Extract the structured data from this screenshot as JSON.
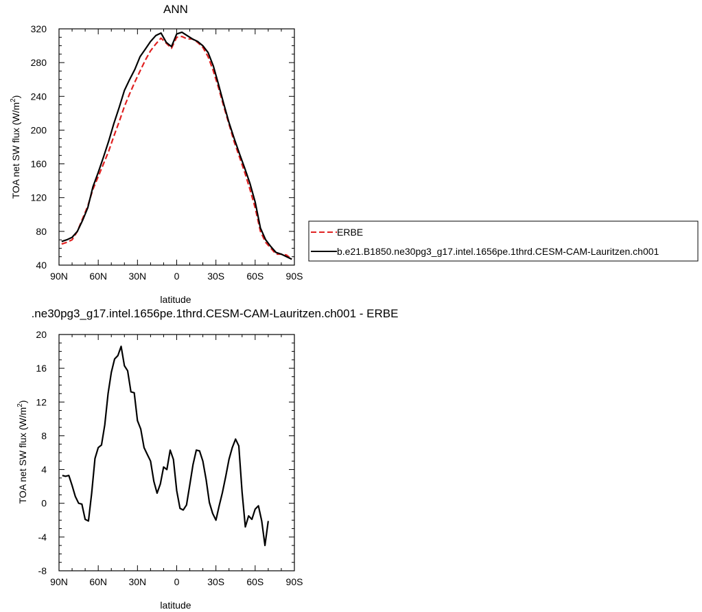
{
  "chart_data": [
    {
      "type": "line",
      "title": "ANN",
      "xlabel": "latitude",
      "ylabel": "TOA net SW flux (W/m",
      "ylabel_sup": "2",
      "ylabel_close": ")",
      "xlim": [
        90,
        -90
      ],
      "ylim": [
        40,
        320
      ],
      "x_ticks": [
        90,
        60,
        30,
        0,
        -30,
        -60,
        -90
      ],
      "x_tick_labels": [
        "90N",
        "60N",
        "30N",
        "0",
        "30S",
        "60S",
        "90S"
      ],
      "y_ticks": [
        40,
        80,
        120,
        160,
        200,
        240,
        280,
        320
      ],
      "y_tick_labels": [
        "40",
        "80",
        "120",
        "160",
        "200",
        "240",
        "280",
        "320"
      ],
      "legend_position": "right",
      "series": [
        {
          "name": "ERBE",
          "color": "#e02020",
          "dash": "8,4",
          "x": [
            88,
            84,
            80,
            76,
            72,
            68,
            64,
            60,
            56,
            52,
            48,
            44,
            40,
            36,
            32,
            28,
            24,
            20,
            16,
            12,
            8,
            4,
            0,
            -4,
            -8,
            -12,
            -16,
            -20,
            -24,
            -28,
            -32,
            -36,
            -40,
            -44,
            -48,
            -52,
            -56,
            -60,
            -64,
            -68,
            -72,
            -76,
            -80,
            -84,
            -88
          ],
          "y": [
            65,
            67,
            70,
            80,
            95,
            110,
            130,
            145,
            160,
            175,
            193,
            210,
            228,
            243,
            257,
            270,
            283,
            294,
            302,
            309,
            303,
            297,
            310,
            311,
            308,
            308,
            304,
            298,
            287,
            270,
            250,
            228,
            207,
            186,
            168,
            150,
            130,
            108,
            80,
            67,
            60,
            53,
            53,
            52,
            47
          ]
        },
        {
          "name": "b.e21.B1850.ne30pg3_g17.intel.1656pe.1thrd.CESM-CAM-Lauritzen.ch001",
          "color": "#000000",
          "dash": "",
          "x": [
            88,
            84,
            80,
            76,
            72,
            68,
            64,
            60,
            56,
            52,
            48,
            44,
            40,
            36,
            32,
            28,
            24,
            20,
            16,
            12,
            8,
            4,
            0,
            -4,
            -8,
            -12,
            -16,
            -20,
            -24,
            -28,
            -32,
            -36,
            -40,
            -44,
            -48,
            -52,
            -56,
            -60,
            -64,
            -68,
            -72,
            -76,
            -80,
            -84,
            -88
          ],
          "y": [
            68,
            70,
            73,
            80,
            93,
            108,
            133,
            150,
            168,
            187,
            208,
            227,
            247,
            260,
            272,
            287,
            296,
            305,
            312,
            315,
            304,
            299,
            314,
            316,
            312,
            308,
            305,
            300,
            292,
            276,
            254,
            231,
            209,
            190,
            172,
            155,
            137,
            115,
            84,
            70,
            62,
            55,
            53,
            50,
            47
          ]
        }
      ]
    },
    {
      "type": "line",
      "title": ".ne30pg3_g17.intel.1656pe.1thrd.CESM-CAM-Lauritzen.ch001 - ERBE",
      "xlabel": "latitude",
      "ylabel": "TOA net SW flux (W/m",
      "ylabel_sup": "2",
      "ylabel_close": ")",
      "xlim": [
        90,
        -90
      ],
      "ylim": [
        -8,
        20
      ],
      "x_ticks": [
        90,
        60,
        30,
        0,
        -30,
        -60,
        -90
      ],
      "x_tick_labels": [
        "90N",
        "60N",
        "30N",
        "0",
        "30S",
        "60S",
        "90S"
      ],
      "y_ticks": [
        -8,
        -4,
        0,
        4,
        8,
        12,
        16,
        20
      ],
      "y_tick_labels": [
        "-8",
        "-4",
        "0",
        "4",
        "8",
        "12",
        "16",
        "20"
      ],
      "series": [
        {
          "color": "#000000",
          "dash": "",
          "x": [
            87.5,
            85,
            82.5,
            80,
            77.5,
            75,
            72.5,
            70,
            67.5,
            65,
            62.5,
            60,
            57.5,
            55,
            52.5,
            50,
            47.5,
            45,
            42.5,
            40,
            37.5,
            35,
            32.5,
            30,
            27.5,
            25,
            22.5,
            20,
            17.5,
            15,
            12.5,
            10,
            7.5,
            5,
            2.5,
            0,
            -2.5,
            -5,
            -7.5,
            -10,
            -12.5,
            -15,
            -17.5,
            -20,
            -22.5,
            -25,
            -27.5,
            -30,
            -32.5,
            -35,
            -37.5,
            -40,
            -42.5,
            -45,
            -47.5,
            -50,
            -52.5,
            -55,
            -57.5,
            -60,
            -62.5,
            -65,
            -67.5,
            -70,
            -72.5,
            -75,
            -77.5,
            -80,
            -82.5,
            -85,
            -87.5
          ],
          "y": [
            3.3,
            3.2,
            3.3,
            2.1,
            0.8,
            0,
            -0.1,
            -1.9,
            -2.1,
            1.2,
            5.3,
            6.6,
            6.9,
            9.3,
            13,
            15.5,
            17.1,
            17.5,
            18.6,
            16.3,
            15.7,
            13.2,
            13.1,
            9.8,
            8.8,
            6.6,
            5.8,
            5,
            2.6,
            1.2,
            2.3,
            4.3,
            4,
            6.3,
            5.2,
            1.5,
            -0.6,
            -0.8,
            -0.2,
            2.2,
            4.6,
            6.3,
            6.2,
            5,
            2.8,
            0.1,
            -1.2,
            -2,
            -0.3,
            1.3,
            3.2,
            5.2,
            6.6,
            7.6,
            6.8,
            1.3,
            -2.8,
            -1.5,
            -1.9,
            -0.7,
            -0.3,
            -2.1,
            -5,
            -2.1,
            null,
            null,
            null,
            null,
            null,
            null,
            null
          ]
        }
      ]
    }
  ]
}
